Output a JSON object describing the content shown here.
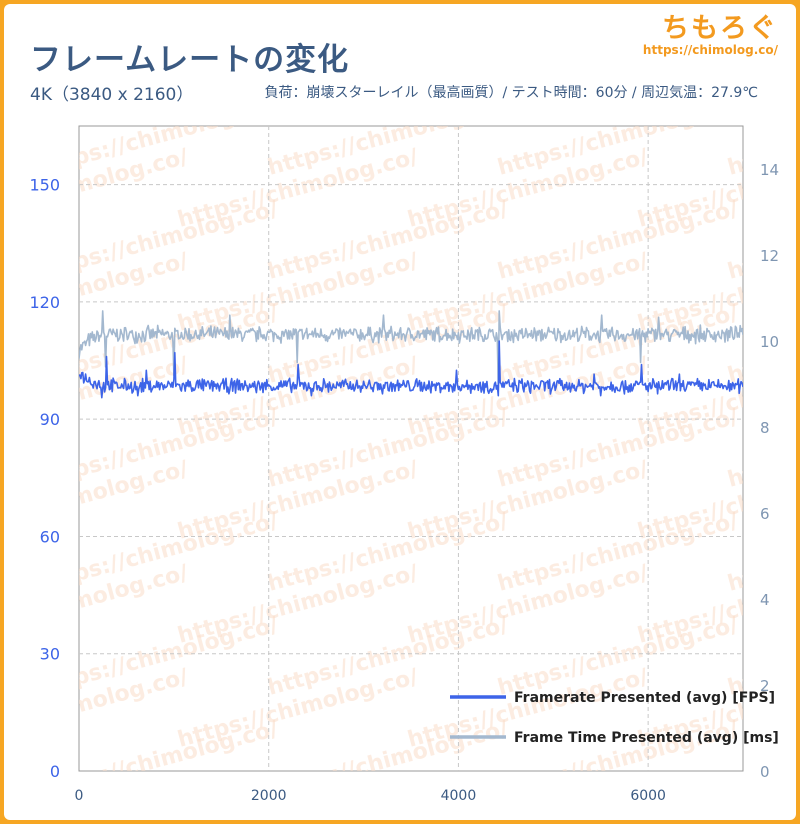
{
  "header": {
    "title": "フレームレートの変化",
    "resolution": "4K（3840 x 2160）",
    "conditions": "負荷：崩壊スターレイル（最高画質）/ テスト時間：60分 / 周辺気温：27.9℃"
  },
  "brand": {
    "name": "ちもろぐ",
    "url": "https://chimolog.co/"
  },
  "watermark": {
    "text": "https://chimolog.co/"
  },
  "colors": {
    "background": "#f6a623",
    "fps_line": "#3d64e8",
    "frametime_line": "#a3b8cf",
    "axis_text": "#3b5a82",
    "grid": "#c8c8c8",
    "watermark": "#f9dcc8"
  },
  "chart_data": {
    "type": "line",
    "title": "",
    "xlabel": "",
    "ylabel": "",
    "xlim": [
      0,
      7000
    ],
    "ylim": [
      0,
      165
    ],
    "y2lim": [
      0,
      15
    ],
    "x_ticks": [
      "0",
      "2000",
      "4000",
      "6000"
    ],
    "y_ticks": [
      "0",
      "30",
      "60",
      "90",
      "120",
      "150"
    ],
    "y2_ticks": [
      "0",
      "2",
      "4",
      "6",
      "8",
      "10",
      "12",
      "14"
    ],
    "grid": true,
    "legend_position": "bottom-right",
    "series": [
      {
        "name": "Framerate Presented (avg) [FPS]",
        "axis": "left",
        "color": "#3d64e8",
        "x": [
          0,
          50,
          100,
          150,
          200,
          300,
          400,
          600,
          800,
          1000,
          1200,
          1500,
          2000,
          2500,
          3000,
          3500,
          4000,
          4500,
          5000,
          5500,
          6000,
          6500,
          7000
        ],
        "values": [
          102,
          101,
          100,
          99.5,
          99,
          98.5,
          98.5,
          98.5,
          98.5,
          98.5,
          98.5,
          98.5,
          98.5,
          98.5,
          98.5,
          98.5,
          98.5,
          98.5,
          98.5,
          98.5,
          98.5,
          98.5,
          98.5
        ],
        "noise": 2.2,
        "spikes_down": [
          {
            "x": 240,
            "value": 95.5
          },
          {
            "x": 620,
            "value": 96
          },
          {
            "x": 1580,
            "value": 96.5
          },
          {
            "x": 2450,
            "value": 96
          },
          {
            "x": 3200,
            "value": 96.5
          },
          {
            "x": 4420,
            "value": 96
          },
          {
            "x": 5500,
            "value": 96
          },
          {
            "x": 6100,
            "value": 96.5
          }
        ],
        "spikes_up": [
          {
            "x": 280,
            "value": 106
          },
          {
            "x": 700,
            "value": 102.5
          },
          {
            "x": 1000,
            "value": 107
          },
          {
            "x": 2300,
            "value": 104
          },
          {
            "x": 3970,
            "value": 102.5
          },
          {
            "x": 4420,
            "value": 110
          },
          {
            "x": 5420,
            "value": 101.5
          },
          {
            "x": 5920,
            "value": 104
          },
          {
            "x": 6320,
            "value": 101.5
          }
        ]
      },
      {
        "name": "Frame Time Presented (avg) [ms]",
        "axis": "right",
        "color": "#a3b8cf",
        "x": [
          0,
          50,
          100,
          150,
          200,
          300,
          400,
          600,
          800,
          1000,
          1500,
          2000,
          2500,
          3000,
          3500,
          4000,
          4500,
          5000,
          5500,
          6000,
          6500,
          7000
        ],
        "values": [
          9.8,
          9.9,
          10.0,
          10.05,
          10.1,
          10.15,
          10.15,
          10.15,
          10.15,
          10.15,
          10.15,
          10.15,
          10.15,
          10.15,
          10.15,
          10.15,
          10.15,
          10.15,
          10.15,
          10.15,
          10.15,
          10.15
        ],
        "noise": 0.22,
        "spikes_down": [
          {
            "x": 280,
            "value": 9.4
          },
          {
            "x": 1000,
            "value": 9.2
          },
          {
            "x": 2300,
            "value": 9.5
          },
          {
            "x": 4420,
            "value": 8.9
          },
          {
            "x": 5920,
            "value": 9.5
          }
        ],
        "spikes_up": [
          {
            "x": 240,
            "value": 10.7
          },
          {
            "x": 1580,
            "value": 10.6
          },
          {
            "x": 3200,
            "value": 10.6
          },
          {
            "x": 4420,
            "value": 10.7
          },
          {
            "x": 5500,
            "value": 10.6
          },
          {
            "x": 6100,
            "value": 10.55
          }
        ]
      }
    ]
  }
}
